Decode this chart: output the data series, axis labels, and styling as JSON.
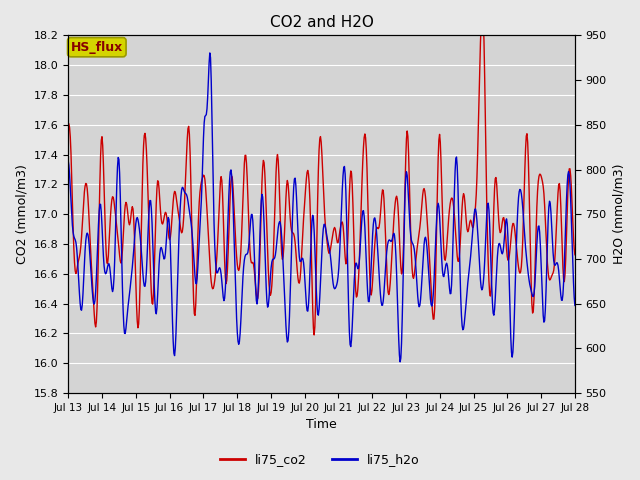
{
  "title": "CO2 and H2O",
  "xlabel": "Time",
  "ylabel_left": "CO2 (mmol/m3)",
  "ylabel_right": "H2O (mmol/m3)",
  "ylim_left": [
    15.8,
    18.2
  ],
  "ylim_right": [
    550,
    950
  ],
  "xlim": [
    0,
    360
  ],
  "xtick_positions": [
    0,
    24,
    48,
    72,
    96,
    120,
    144,
    168,
    192,
    216,
    240,
    264,
    288,
    312,
    336,
    360
  ],
  "xtick_labels": [
    "Jul 13",
    "Jul 14",
    "Jul 15",
    "Jul 16",
    "Jul 17",
    "Jul 18",
    "Jul 19",
    "Jul 20",
    "Jul 21",
    "Jul 22",
    "Jul 23",
    "Jul 24",
    "Jul 25",
    "Jul 26",
    "Jul 27",
    "Jul 28"
  ],
  "co2_color": "#cc0000",
  "h2o_color": "#0000cc",
  "linewidth": 1.0,
  "bg_color": "#e8e8e8",
  "plot_bg_color": "#d4d4d4",
  "legend_entries": [
    "li75_co2",
    "li75_h2o"
  ],
  "source_label": "HS_flux",
  "source_label_bg": "#d4d400",
  "source_label_text_color": "#880000",
  "grid_color": "#ffffff",
  "yticks_left": [
    15.8,
    16.0,
    16.2,
    16.4,
    16.6,
    16.8,
    17.0,
    17.2,
    17.4,
    17.6,
    17.8,
    18.0,
    18.2
  ],
  "yticks_right": [
    550,
    600,
    650,
    700,
    750,
    800,
    850,
    900,
    950
  ]
}
